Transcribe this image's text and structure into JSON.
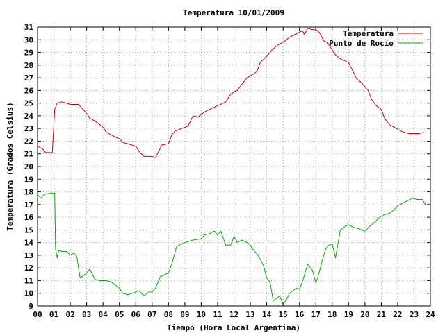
{
  "chart_data": {
    "type": "line",
    "title": "Temperatura 10/01/2009",
    "xlabel": "Tiempo (Hora Local Argentina)",
    "ylabel": "Temperatura (Grados Celsius)",
    "xlim": [
      0,
      24
    ],
    "ylim": [
      9,
      31
    ],
    "x_ticks": [
      "00",
      "01",
      "02",
      "03",
      "04",
      "05",
      "06",
      "07",
      "08",
      "09",
      "10",
      "11",
      "12",
      "13",
      "14",
      "15",
      "16",
      "17",
      "18",
      "19",
      "20",
      "21",
      "22",
      "23",
      "24"
    ],
    "y_ticks": [
      9,
      10,
      11,
      12,
      13,
      14,
      15,
      16,
      17,
      18,
      19,
      20,
      21,
      22,
      23,
      24,
      25,
      26,
      27,
      28,
      29,
      30,
      31
    ],
    "grid": true,
    "legend": "top-right",
    "series": [
      {
        "name": "Temperatura",
        "color": "#cc0000",
        "x": [
          0.0,
          0.3,
          0.5,
          0.9,
          1.05,
          1.2,
          1.5,
          2.0,
          2.2,
          2.5,
          3.0,
          3.2,
          3.5,
          4.0,
          4.2,
          4.5,
          4.8,
          5.0,
          5.2,
          5.5,
          6.0,
          6.2,
          6.5,
          7.0,
          7.2,
          7.4,
          7.6,
          8.0,
          8.2,
          8.4,
          8.8,
          9.2,
          9.5,
          9.8,
          10.2,
          10.5,
          11.0,
          11.5,
          11.8,
          12.0,
          12.2,
          12.5,
          12.8,
          13.2,
          13.4,
          13.6,
          14.0,
          14.2,
          14.4,
          14.7,
          15.0,
          15.2,
          15.4,
          15.7,
          16.0,
          16.2,
          16.3,
          16.5,
          16.8,
          17.0,
          17.2,
          17.5,
          17.7,
          18.0,
          18.2,
          18.5,
          19.0,
          19.2,
          19.5,
          19.8,
          20.2,
          20.4,
          20.7,
          21.0,
          21.2,
          21.5,
          21.8,
          22.2,
          22.4,
          22.7,
          23.0,
          23.3,
          23.6
        ],
        "values": [
          21.6,
          21.4,
          21.1,
          21.1,
          24.5,
          25.0,
          25.1,
          24.9,
          24.9,
          24.9,
          24.2,
          23.8,
          23.6,
          23.1,
          22.7,
          22.5,
          22.3,
          22.2,
          21.9,
          21.8,
          21.6,
          21.2,
          20.8,
          20.8,
          20.7,
          21.2,
          21.7,
          21.8,
          22.5,
          22.8,
          23.0,
          23.2,
          24.0,
          23.9,
          24.3,
          24.5,
          24.8,
          25.1,
          25.7,
          25.9,
          26.0,
          26.5,
          27.0,
          27.3,
          27.5,
          28.2,
          28.7,
          29.0,
          29.3,
          29.6,
          29.8,
          30.0,
          30.2,
          30.4,
          30.6,
          30.7,
          30.4,
          30.9,
          30.8,
          30.8,
          30.6,
          29.9,
          29.8,
          29.2,
          28.8,
          28.5,
          28.2,
          27.7,
          26.9,
          26.6,
          26.0,
          25.3,
          24.8,
          24.5,
          23.8,
          23.3,
          23.1,
          22.8,
          22.7,
          22.6,
          22.6,
          22.6,
          22.7
        ]
      },
      {
        "name": "Punto de Rocío",
        "color": "#00aa00",
        "x": [
          0.0,
          0.2,
          0.4,
          0.8,
          1.05,
          1.1,
          1.2,
          1.3,
          1.5,
          1.8,
          2.0,
          2.2,
          2.4,
          2.6,
          3.0,
          3.2,
          3.5,
          3.8,
          4.0,
          4.2,
          4.5,
          5.0,
          5.2,
          5.5,
          5.8,
          6.0,
          6.2,
          6.5,
          6.8,
          7.0,
          7.2,
          7.5,
          7.8,
          8.0,
          8.2,
          8.5,
          9.0,
          9.5,
          10.0,
          10.2,
          10.5,
          10.8,
          11.0,
          11.2,
          11.5,
          11.8,
          12.0,
          12.2,
          12.5,
          12.8,
          13.0,
          13.2,
          13.4,
          13.6,
          13.8,
          14.0,
          14.2,
          14.4,
          14.6,
          14.8,
          15.0,
          15.2,
          15.4,
          15.6,
          15.8,
          16.0,
          16.2,
          16.5,
          16.8,
          17.0,
          17.2,
          17.4,
          17.6,
          17.8,
          18.0,
          18.2,
          18.5,
          18.8,
          19.0,
          19.3,
          19.6,
          20.0,
          20.3,
          20.6,
          20.9,
          21.2,
          21.5,
          21.8,
          22.0,
          22.3,
          22.6,
          22.9,
          23.2,
          23.5,
          23.7
        ],
        "values": [
          17.8,
          17.5,
          17.8,
          17.9,
          17.9,
          13.5,
          12.8,
          13.4,
          13.3,
          13.3,
          13.0,
          13.2,
          12.9,
          11.2,
          11.6,
          11.9,
          11.1,
          11.0,
          11.0,
          11.0,
          10.9,
          10.4,
          10.0,
          9.9,
          10.0,
          10.1,
          10.2,
          9.8,
          10.1,
          10.1,
          10.4,
          11.3,
          11.5,
          11.6,
          12.3,
          13.7,
          14.0,
          14.2,
          14.3,
          14.6,
          14.7,
          14.9,
          14.6,
          14.9,
          13.8,
          13.8,
          14.5,
          14.0,
          14.2,
          14.0,
          13.8,
          13.4,
          13.1,
          12.7,
          12.2,
          11.2,
          10.9,
          9.4,
          9.6,
          9.8,
          9.1,
          9.5,
          10.0,
          10.2,
          10.4,
          10.3,
          11.0,
          12.3,
          11.8,
          10.8,
          11.6,
          12.6,
          13.5,
          13.8,
          13.9,
          12.8,
          15.0,
          15.3,
          15.4,
          15.2,
          15.1,
          14.9,
          15.3,
          15.6,
          16.0,
          16.2,
          16.3,
          16.6,
          16.9,
          17.1,
          17.3,
          17.5,
          17.4,
          17.4,
          17.0
        ]
      }
    ]
  }
}
